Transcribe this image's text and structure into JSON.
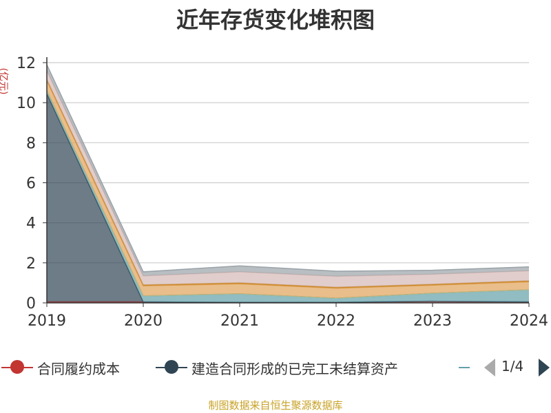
{
  "title": "近年存货变化堆积图",
  "source_note": "制图数据来自恒生聚源数据库",
  "legend": {
    "items": [
      {
        "label": "合同履约成本",
        "color": "#c23531"
      },
      {
        "label": "建造合同形成的已完工未结算资产",
        "color": "#2f4554"
      },
      {
        "label": "",
        "color": "#61a0a8"
      }
    ],
    "page": "1/4"
  },
  "chart_data": {
    "type": "area",
    "stacked": true,
    "ylabel": "(亿元)",
    "ylim": [
      0,
      12
    ],
    "yticks": [
      "0",
      "2",
      "4",
      "6",
      "8",
      "10",
      "12"
    ],
    "categories": [
      "2019",
      "2020",
      "2021",
      "2022",
      "2023",
      "2024"
    ],
    "grid": true,
    "series": [
      {
        "name": "合同履约成本",
        "color": "#c23531",
        "values": [
          0.05,
          0.05,
          0.03,
          0.03,
          0.08,
          0.05
        ]
      },
      {
        "name": "建造合同形成的已完工未结算资产",
        "color": "#2f4554",
        "values": [
          10.4,
          0.0,
          0.0,
          0.0,
          0.0,
          0.0
        ]
      },
      {
        "color": "#61a0a8",
        "values": [
          0.15,
          0.3,
          0.42,
          0.2,
          0.4,
          0.6
        ]
      },
      {
        "color": "#d48265",
        "values": [
          0.0,
          0.0,
          0.0,
          0.0,
          0.0,
          0.0
        ]
      },
      {
        "color": "#91c7ae",
        "values": [
          0.0,
          0.0,
          0.0,
          0.0,
          0.0,
          0.0
        ]
      },
      {
        "color": "#e0a35a",
        "values": [
          0.5,
          0.5,
          0.5,
          0.5,
          0.4,
          0.4
        ]
      },
      {
        "color": "#ca8622",
        "values": [
          0.05,
          0.05,
          0.05,
          0.05,
          0.05,
          0.05
        ]
      },
      {
        "color": "#d4b8b5",
        "values": [
          0.45,
          0.45,
          0.55,
          0.55,
          0.5,
          0.5
        ]
      },
      {
        "color": "#9aa3a8",
        "values": [
          0.3,
          0.2,
          0.3,
          0.25,
          0.2,
          0.2
        ]
      }
    ]
  }
}
